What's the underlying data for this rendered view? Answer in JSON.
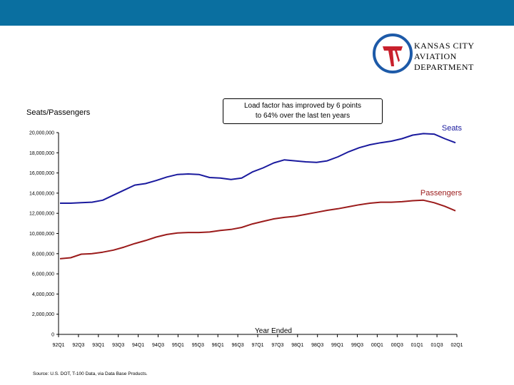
{
  "colors": {
    "top_bar": "#0a6fa0",
    "seats": "#1a1a9e",
    "passengers": "#9b1b1b",
    "logo_blue": "#1d5aa8",
    "logo_red": "#c8202c"
  },
  "logo": {
    "line1": "KANSAS CITY",
    "line2": "AVIATION DEPARTMENT"
  },
  "callout": {
    "line1": "Load factor has improved by 6 points",
    "line2": "to 64% over the last ten years"
  },
  "source": "Source: U.S. DOT, T-100 Data, via Data Base Products.",
  "chart_data": {
    "type": "line",
    "ylabel": "Seats/Passengers",
    "xlabel": "Year Ended",
    "ylim": [
      0,
      20000000
    ],
    "yticks": [
      0,
      2000000,
      4000000,
      6000000,
      8000000,
      10000000,
      12000000,
      14000000,
      16000000,
      18000000,
      20000000
    ],
    "ytick_labels": [
      "0",
      "2,000,000",
      "4,000,000",
      "6,000,000",
      "8,000,000",
      "10,000,000",
      "12,000,000",
      "14,000,000",
      "16,000,000",
      "18,000,000",
      "20,000,000"
    ],
    "x_tick_labels": [
      "92Q1",
      "92Q3",
      "93Q1",
      "93Q3",
      "94Q1",
      "94Q3",
      "95Q1",
      "95Q3",
      "96Q1",
      "96Q3",
      "97Q1",
      "97Q3",
      "98Q1",
      "98Q3",
      "99Q1",
      "99Q3",
      "00Q1",
      "00Q3",
      "01Q1",
      "01Q3",
      "02Q1"
    ],
    "grid": false,
    "series": [
      {
        "name": "Seats",
        "values": [
          13000000,
          13000000,
          13050000,
          13100000,
          13300000,
          13800000,
          14300000,
          14800000,
          14950000,
          15250000,
          15600000,
          15850000,
          15900000,
          15850000,
          15550000,
          15500000,
          15350000,
          15500000,
          16100000,
          16500000,
          17000000,
          17300000,
          17200000,
          17100000,
          17050000,
          17200000,
          17600000,
          18100000,
          18500000,
          18800000,
          19000000,
          19150000,
          19400000,
          19750000,
          19900000,
          19850000,
          19400000,
          19000000
        ]
      },
      {
        "name": "Passengers",
        "values": [
          7500000,
          7600000,
          7950000,
          8000000,
          8150000,
          8350000,
          8650000,
          9000000,
          9300000,
          9650000,
          9900000,
          10050000,
          10100000,
          10100000,
          10150000,
          10300000,
          10400000,
          10600000,
          10950000,
          11200000,
          11450000,
          11600000,
          11700000,
          11900000,
          12100000,
          12300000,
          12450000,
          12650000,
          12850000,
          13000000,
          13100000,
          13100000,
          13150000,
          13250000,
          13300000,
          13050000,
          12700000,
          12250000
        ]
      }
    ]
  }
}
